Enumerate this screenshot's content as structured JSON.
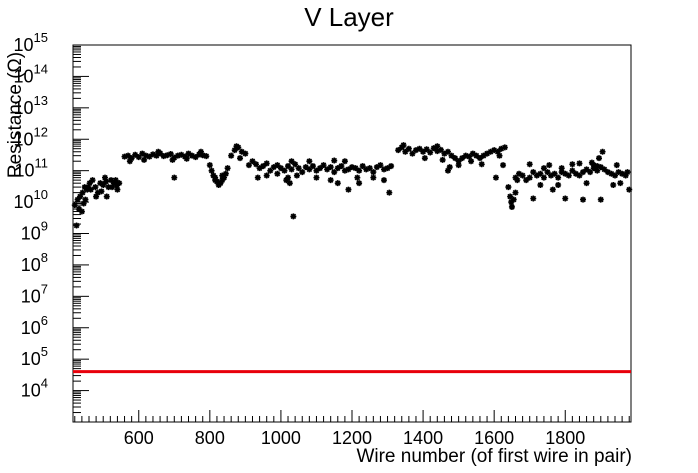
{
  "chart_data": {
    "type": "scatter",
    "title": "V Layer",
    "xlabel": "Wire number (of first wire in pair)",
    "ylabel": "Resistance (Ω)",
    "xlim": [
      415,
      1985
    ],
    "ylim_exponent": [
      3,
      15
    ],
    "yscale": "log",
    "x_ticks": [
      "600",
      "800",
      "1000",
      "1200",
      "1400",
      "1600",
      "1800"
    ],
    "y_ticks": [
      {
        "base": "10",
        "exp": "15"
      },
      {
        "base": "10",
        "exp": "14"
      },
      {
        "base": "10",
        "exp": "13"
      },
      {
        "base": "10",
        "exp": "12"
      },
      {
        "base": "10",
        "exp": "11"
      },
      {
        "base": "10",
        "exp": "10"
      },
      {
        "base": "10",
        "exp": "9"
      },
      {
        "base": "10",
        "exp": "8"
      },
      {
        "base": "10",
        "exp": "7"
      },
      {
        "base": "10",
        "exp": "6"
      },
      {
        "base": "10",
        "exp": "5"
      },
      {
        "base": "10",
        "exp": "4"
      }
    ],
    "threshold": {
      "value": 40000,
      "color": "#e8000b"
    },
    "marker_color": "#000000",
    "series": [
      {
        "values": [
          [
            420,
            8000000000.0
          ],
          [
            428,
            12000000000.0
          ],
          [
            435,
            15000000000.0
          ],
          [
            442,
            20000000000.0
          ],
          [
            448,
            30000000000.0
          ],
          [
            455,
            25000000000.0
          ],
          [
            462,
            40000000000.0
          ],
          [
            470,
            50000000000.0
          ],
          [
            478,
            30000000000.0
          ],
          [
            485,
            20000000000.0
          ],
          [
            492,
            40000000000.0
          ],
          [
            500,
            35000000000.0
          ],
          [
            508,
            45000000000.0
          ],
          [
            515,
            30000000000.0
          ],
          [
            522,
            50000000000.0
          ],
          [
            530,
            40000000000.0
          ],
          [
            538,
            35000000000.0
          ],
          [
            545,
            40000000000.0
          ],
          [
            425,
            1800000000.0
          ],
          [
            432,
            6000000000.0
          ],
          [
            440,
            5000000000.0
          ],
          [
            450,
            12000000000.0
          ],
          [
            465,
            25000000000.0
          ],
          [
            480,
            15000000000.0
          ],
          [
            495,
            22000000000.0
          ],
          [
            510,
            15000000000.0
          ],
          [
            525,
            30000000000.0
          ],
          [
            540,
            25000000000.0
          ],
          [
            445,
            9000000000.0
          ],
          [
            458,
            30000000000.0
          ],
          [
            505,
            60000000000.0
          ],
          [
            535,
            50000000000.0
          ],
          [
            560,
            280000000000.0
          ],
          [
            570,
            300000000000.0
          ],
          [
            580,
            250000000000.0
          ],
          [
            590,
            320000000000.0
          ],
          [
            600,
            270000000000.0
          ],
          [
            610,
            350000000000.0
          ],
          [
            620,
            300000000000.0
          ],
          [
            630,
            280000000000.0
          ],
          [
            640,
            330000000000.0
          ],
          [
            650,
            300000000000.0
          ],
          [
            660,
            360000000000.0
          ],
          [
            670,
            290000000000.0
          ],
          [
            680,
            310000000000.0
          ],
          [
            690,
            340000000000.0
          ],
          [
            700,
            260000000000.0
          ],
          [
            710,
            300000000000.0
          ],
          [
            720,
            320000000000.0
          ],
          [
            730,
            280000000000.0
          ],
          [
            740,
            350000000000.0
          ],
          [
            750,
            300000000000.0
          ],
          [
            760,
            270000000000.0
          ],
          [
            770,
            330000000000.0
          ],
          [
            780,
            310000000000.0
          ],
          [
            790,
            290000000000.0
          ],
          [
            575,
            200000000000.0
          ],
          [
            615,
            220000000000.0
          ],
          [
            655,
            400000000000.0
          ],
          [
            695,
            220000000000.0
          ],
          [
            735,
            240000000000.0
          ],
          [
            775,
            400000000000.0
          ],
          [
            700,
            60000000000.0
          ],
          [
            800,
            150000000000.0
          ],
          [
            805,
            100000000000.0
          ],
          [
            810,
            70000000000.0
          ],
          [
            815,
            50000000000.0
          ],
          [
            820,
            45000000000.0
          ],
          [
            825,
            35000000000.0
          ],
          [
            830,
            40000000000.0
          ],
          [
            835,
            50000000000.0
          ],
          [
            840,
            60000000000.0
          ],
          [
            845,
            80000000000.0
          ],
          [
            850,
            120000000000.0
          ],
          [
            815,
            60000000000.0
          ],
          [
            835,
            70000000000.0
          ],
          [
            860,
            300000000000.0
          ],
          [
            870,
            450000000000.0
          ],
          [
            880,
            550000000000.0
          ],
          [
            890,
            400000000000.0
          ],
          [
            900,
            350000000000.0
          ],
          [
            875,
            600000000000.0
          ],
          [
            885,
            250000000000.0
          ],
          [
            910,
            150000000000.0
          ],
          [
            920,
            200000000000.0
          ],
          [
            930,
            160000000000.0
          ],
          [
            940,
            120000000000.0
          ],
          [
            950,
            140000000000.0
          ],
          [
            960,
            170000000000.0
          ],
          [
            970,
            100000000000.0
          ],
          [
            980,
            130000000000.0
          ],
          [
            990,
            150000000000.0
          ],
          [
            1000,
            120000000000.0
          ],
          [
            1010,
            100000000000.0
          ],
          [
            1020,
            140000000000.0
          ],
          [
            1030,
            110000000000.0
          ],
          [
            1040,
            160000000000.0
          ],
          [
            1050,
            120000000000.0
          ],
          [
            1060,
            90000000000.0
          ],
          [
            1070,
            130000000000.0
          ],
          [
            1080,
            110000000000.0
          ],
          [
            1090,
            140000000000.0
          ],
          [
            1100,
            100000000000.0
          ],
          [
            1110,
            120000000000.0
          ],
          [
            1120,
            150000000000.0
          ],
          [
            1130,
            110000000000.0
          ],
          [
            1140,
            130000000000.0
          ],
          [
            1150,
            90000000000.0
          ],
          [
            1160,
            120000000000.0
          ],
          [
            1170,
            140000000000.0
          ],
          [
            1180,
            100000000000.0
          ],
          [
            1190,
            110000000000.0
          ],
          [
            1200,
            130000000000.0
          ],
          [
            1210,
            120000000000.0
          ],
          [
            1220,
            100000000000.0
          ],
          [
            1230,
            140000000000.0
          ],
          [
            1240,
            110000000000.0
          ],
          [
            1250,
            120000000000.0
          ],
          [
            1260,
            90000000000.0
          ],
          [
            1270,
            130000000000.0
          ],
          [
            1280,
            150000000000.0
          ],
          [
            1290,
            110000000000.0
          ],
          [
            1300,
            120000000000.0
          ],
          [
            1310,
            140000000000.0
          ],
          [
            1020,
            60000000000.0
          ],
          [
            1025,
            40000000000.0
          ],
          [
            1035,
            3500000000.0
          ],
          [
            1045,
            70000000000.0
          ],
          [
            1015,
            50000000000.0
          ],
          [
            1100,
            60000000000.0
          ],
          [
            1160,
            40000000000.0
          ],
          [
            1190,
            25000000000.0
          ],
          [
            1220,
            40000000000.0
          ],
          [
            1260,
            60000000000.0
          ],
          [
            1290,
            50000000000.0
          ],
          [
            1305,
            20000000000.0
          ],
          [
            1215,
            60000000000.0
          ],
          [
            1140,
            50000000000.0
          ],
          [
            935,
            60000000000.0
          ],
          [
            960,
            70000000000.0
          ],
          [
            990,
            80000000000.0
          ],
          [
            1080,
            200000000000.0
          ],
          [
            1180,
            200000000000.0
          ],
          [
            1030,
            200000000000.0
          ],
          [
            1150,
            210000000000.0
          ],
          [
            1330,
            450000000000.0
          ],
          [
            1340,
            550000000000.0
          ],
          [
            1350,
            400000000000.0
          ],
          [
            1360,
            500000000000.0
          ],
          [
            1370,
            350000000000.0
          ],
          [
            1380,
            450000000000.0
          ],
          [
            1390,
            500000000000.0
          ],
          [
            1400,
            400000000000.0
          ],
          [
            1410,
            480000000000.0
          ],
          [
            1420,
            380000000000.0
          ],
          [
            1430,
            520000000000.0
          ],
          [
            1440,
            420000000000.0
          ],
          [
            1450,
            460000000000.0
          ],
          [
            1460,
            350000000000.0
          ],
          [
            1470,
            400000000000.0
          ],
          [
            1480,
            300000000000.0
          ],
          [
            1490,
            250000000000.0
          ],
          [
            1500,
            200000000000.0
          ],
          [
            1510,
            250000000000.0
          ],
          [
            1520,
            300000000000.0
          ],
          [
            1530,
            280000000000.0
          ],
          [
            1540,
            350000000000.0
          ],
          [
            1550,
            300000000000.0
          ],
          [
            1560,
            250000000000.0
          ],
          [
            1570,
            300000000000.0
          ],
          [
            1580,
            350000000000.0
          ],
          [
            1590,
            400000000000.0
          ],
          [
            1600,
            450000000000.0
          ],
          [
            1610,
            400000000000.0
          ],
          [
            1620,
            500000000000.0
          ],
          [
            1630,
            550000000000.0
          ],
          [
            1345,
            650000000000.0
          ],
          [
            1405,
            250000000000.0
          ],
          [
            1440,
            600000000000.0
          ],
          [
            1470,
            100000000000.0
          ],
          [
            1475,
            130000000000.0
          ],
          [
            1455,
            220000000000.0
          ],
          [
            1500,
            150000000000.0
          ],
          [
            1535,
            200000000000.0
          ],
          [
            1565,
            160000000000.0
          ],
          [
            1605,
            60000000000.0
          ],
          [
            1615,
            300000000000.0
          ],
          [
            1625,
            150000000000.0
          ],
          [
            1640,
            30000000000.0
          ],
          [
            1645,
            15000000000.0
          ],
          [
            1650,
            7000000000.0
          ],
          [
            1655,
            12000000000.0
          ],
          [
            1660,
            20000000000.0
          ],
          [
            1648,
            10000000000.0
          ],
          [
            1665,
            50000000000.0
          ],
          [
            1660,
            60000000000.0
          ],
          [
            1670,
            80000000000.0
          ],
          [
            1680,
            70000000000.0
          ],
          [
            1690,
            50000000000.0
          ],
          [
            1700,
            60000000000.0
          ],
          [
            1710,
            90000000000.0
          ],
          [
            1720,
            70000000000.0
          ],
          [
            1730,
            80000000000.0
          ],
          [
            1740,
            60000000000.0
          ],
          [
            1750,
            90000000000.0
          ],
          [
            1760,
            70000000000.0
          ],
          [
            1770,
            80000000000.0
          ],
          [
            1780,
            60000000000.0
          ],
          [
            1790,
            90000000000.0
          ],
          [
            1800,
            80000000000.0
          ],
          [
            1810,
            70000000000.0
          ],
          [
            1820,
            100000000000.0
          ],
          [
            1830,
            80000000000.0
          ],
          [
            1840,
            70000000000.0
          ],
          [
            1850,
            90000000000.0
          ],
          [
            1860,
            110000000000.0
          ],
          [
            1870,
            90000000000.0
          ],
          [
            1880,
            120000000000.0
          ],
          [
            1890,
            100000000000.0
          ],
          [
            1900,
            130000000000.0
          ],
          [
            1910,
            110000000000.0
          ],
          [
            1920,
            90000000000.0
          ],
          [
            1930,
            80000000000.0
          ],
          [
            1940,
            70000000000.0
          ],
          [
            1950,
            90000000000.0
          ],
          [
            1960,
            80000000000.0
          ],
          [
            1970,
            70000000000.0
          ],
          [
            1980,
            25000000000.0
          ],
          [
            1700,
            160000000000.0
          ],
          [
            1740,
            120000000000.0
          ],
          [
            1755,
            150000000000.0
          ],
          [
            1790,
            120000000000.0
          ],
          [
            1820,
            160000000000.0
          ],
          [
            1840,
            170000000000.0
          ],
          [
            1875,
            180000000000.0
          ],
          [
            1880,
            150000000000.0
          ],
          [
            1890,
            140000000000.0
          ],
          [
            1905,
            400000000000.0
          ],
          [
            1895,
            250000000000.0
          ],
          [
            1710,
            13000000000.0
          ],
          [
            1730,
            35000000000.0
          ],
          [
            1765,
            25000000000.0
          ],
          [
            1780,
            35000000000.0
          ],
          [
            1800,
            13000000000.0
          ],
          [
            1850,
            12000000000.0
          ],
          [
            1860,
            40000000000.0
          ],
          [
            1900,
            12000000000.0
          ],
          [
            1935,
            35000000000.0
          ],
          [
            1955,
            40000000000.0
          ],
          [
            1945,
            150000000000.0
          ],
          [
            1975,
            90000000000.0
          ]
        ]
      }
    ]
  }
}
